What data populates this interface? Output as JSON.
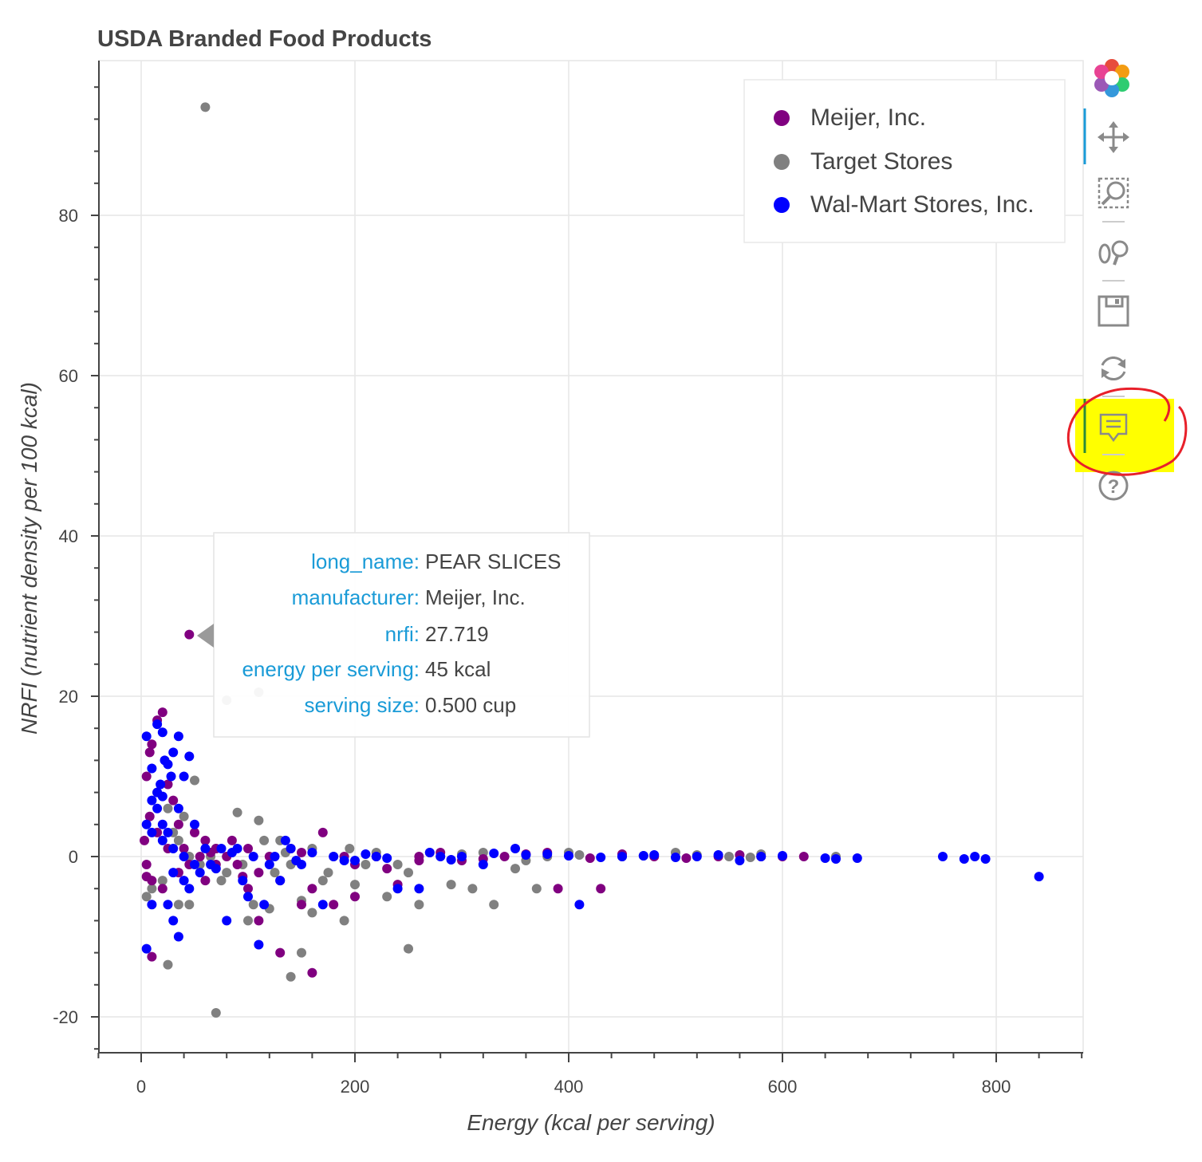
{
  "colors": {
    "meijer": "#800080",
    "target": "#808080",
    "walmart": "#0000ff",
    "tooltip_key": "#1a9bd7",
    "highlight": "#ffff00",
    "annotation": "#e8202a",
    "active_tool": "#1a9bd7"
  },
  "chart_data": {
    "type": "scatter",
    "title": "USDA Branded Food Products",
    "xlabel": "Energy (kcal per serving)",
    "ylabel": "NRFI (nutrient density per 100 kcal)",
    "xlim": [
      -40,
      880
    ],
    "ylim": [
      -24,
      98
    ],
    "x_ticks": [
      0,
      200,
      400,
      600,
      800
    ],
    "x_tick_labels": [
      "0",
      "200",
      "400",
      "600",
      "800"
    ],
    "y_ticks": [
      -20,
      0,
      20,
      40,
      60,
      80
    ],
    "y_tick_labels": [
      "-20",
      "0",
      "20",
      "40",
      "60",
      "80"
    ],
    "grid": true,
    "legend_position": "top-right",
    "series": [
      {
        "name": "Meijer, Inc.",
        "color": "#800080",
        "points": [
          [
            45,
            27.7
          ],
          [
            20,
            18
          ],
          [
            15,
            17
          ],
          [
            8,
            13
          ],
          [
            10,
            14
          ],
          [
            5,
            10
          ],
          [
            25,
            9
          ],
          [
            30,
            7
          ],
          [
            8,
            5
          ],
          [
            15,
            3
          ],
          [
            3,
            2
          ],
          [
            5,
            -1
          ],
          [
            10,
            -3
          ],
          [
            20,
            -4
          ],
          [
            5,
            -2.5
          ],
          [
            35,
            -2
          ],
          [
            40,
            1
          ],
          [
            50,
            3
          ],
          [
            60,
            2
          ],
          [
            70,
            1
          ],
          [
            80,
            0
          ],
          [
            90,
            -1
          ],
          [
            100,
            1
          ],
          [
            110,
            -2
          ],
          [
            120,
            0
          ],
          [
            130,
            -3
          ],
          [
            140,
            1
          ],
          [
            150,
            0.5
          ],
          [
            170,
            3
          ],
          [
            180,
            -6
          ],
          [
            190,
            0
          ],
          [
            200,
            -5
          ],
          [
            220,
            0
          ],
          [
            240,
            -3.5
          ],
          [
            260,
            0
          ],
          [
            280,
            0.5
          ],
          [
            300,
            -0.5
          ],
          [
            340,
            0
          ],
          [
            380,
            0.5
          ],
          [
            390,
            -4
          ],
          [
            430,
            -4
          ],
          [
            480,
            0
          ],
          [
            540,
            0
          ],
          [
            580,
            0
          ],
          [
            600,
            0
          ],
          [
            620,
            0
          ],
          [
            10,
            -12.5
          ],
          [
            130,
            -12
          ],
          [
            160,
            -14.5
          ],
          [
            110,
            -8
          ],
          [
            100,
            -4
          ],
          [
            70,
            -1
          ],
          [
            60,
            -3
          ],
          [
            25,
            1
          ],
          [
            35,
            4
          ],
          [
            55,
            0
          ],
          [
            45,
            -1
          ],
          [
            65,
            0.5
          ],
          [
            85,
            2
          ],
          [
            95,
            -2.5
          ],
          [
            150,
            -6
          ],
          [
            160,
            -4
          ],
          [
            200,
            -1
          ],
          [
            230,
            -1.5
          ],
          [
            260,
            -0.5
          ],
          [
            320,
            -0.3
          ],
          [
            360,
            0.3
          ],
          [
            420,
            -0.2
          ],
          [
            450,
            0.3
          ],
          [
            510,
            -0.2
          ],
          [
            560,
            0.2
          ]
        ]
      },
      {
        "name": "Target Stores",
        "color": "#808080",
        "points": [
          [
            60,
            93.5
          ],
          [
            110,
            20.5
          ],
          [
            80,
            19.5
          ],
          [
            70,
            -19.5
          ],
          [
            25,
            -13.5
          ],
          [
            140,
            -15
          ],
          [
            150,
            -12
          ],
          [
            190,
            -8
          ],
          [
            250,
            -11.5
          ],
          [
            5,
            -5
          ],
          [
            10,
            -4
          ],
          [
            20,
            -3
          ],
          [
            30,
            3
          ],
          [
            40,
            5
          ],
          [
            50,
            9.5
          ],
          [
            35,
            2
          ],
          [
            45,
            0
          ],
          [
            55,
            -1
          ],
          [
            70,
            1
          ],
          [
            80,
            -2
          ],
          [
            90,
            5.5
          ],
          [
            100,
            -8
          ],
          [
            110,
            4.5
          ],
          [
            120,
            -6.5
          ],
          [
            130,
            2
          ],
          [
            140,
            -1
          ],
          [
            150,
            -5.5
          ],
          [
            160,
            1
          ],
          [
            170,
            -3
          ],
          [
            180,
            0
          ],
          [
            200,
            -3.5
          ],
          [
            210,
            -1
          ],
          [
            230,
            -5
          ],
          [
            250,
            -2
          ],
          [
            260,
            -6
          ],
          [
            290,
            -3.5
          ],
          [
            310,
            -4
          ],
          [
            330,
            -6
          ],
          [
            350,
            -1.5
          ],
          [
            370,
            -4
          ],
          [
            400,
            0.5
          ],
          [
            450,
            0
          ],
          [
            500,
            0.5
          ],
          [
            550,
            0
          ],
          [
            580,
            0.3
          ],
          [
            650,
            0
          ],
          [
            15,
            8
          ],
          [
            25,
            6
          ],
          [
            35,
            -6
          ],
          [
            45,
            -6
          ],
          [
            65,
            0
          ],
          [
            75,
            -3
          ],
          [
            95,
            -1
          ],
          [
            105,
            -6
          ],
          [
            115,
            2
          ],
          [
            125,
            -2
          ],
          [
            135,
            0.5
          ],
          [
            160,
            -7
          ],
          [
            175,
            -2
          ],
          [
            195,
            1
          ],
          [
            220,
            0.5
          ],
          [
            240,
            -1
          ],
          [
            270,
            0.5
          ],
          [
            300,
            0.3
          ],
          [
            320,
            0.5
          ],
          [
            360,
            -0.5
          ],
          [
            380,
            0
          ],
          [
            410,
            0.2
          ],
          [
            470,
            0.1
          ],
          [
            520,
            0.2
          ],
          [
            570,
            -0.1
          ]
        ]
      },
      {
        "name": "Wal-Mart Stores, Inc.",
        "color": "#0000ff",
        "points": [
          [
            5,
            15
          ],
          [
            15,
            16.5
          ],
          [
            20,
            15.5
          ],
          [
            35,
            15
          ],
          [
            45,
            12.5
          ],
          [
            10,
            11
          ],
          [
            25,
            11.5
          ],
          [
            30,
            13
          ],
          [
            40,
            10
          ],
          [
            15,
            8
          ],
          [
            20,
            7.5
          ],
          [
            35,
            6
          ],
          [
            5,
            4
          ],
          [
            10,
            3
          ],
          [
            20,
            2
          ],
          [
            30,
            1
          ],
          [
            40,
            0
          ],
          [
            50,
            -1
          ],
          [
            60,
            1
          ],
          [
            70,
            -1.5
          ],
          [
            80,
            -8
          ],
          [
            90,
            1
          ],
          [
            100,
            -5
          ],
          [
            110,
            -11
          ],
          [
            120,
            -1
          ],
          [
            130,
            -3
          ],
          [
            140,
            1
          ],
          [
            150,
            -1
          ],
          [
            170,
            -6
          ],
          [
            180,
            0
          ],
          [
            200,
            -0.5
          ],
          [
            220,
            0
          ],
          [
            240,
            -4
          ],
          [
            260,
            -4
          ],
          [
            280,
            0
          ],
          [
            300,
            0
          ],
          [
            320,
            -1
          ],
          [
            350,
            1
          ],
          [
            380,
            0.3
          ],
          [
            410,
            -6
          ],
          [
            450,
            0
          ],
          [
            480,
            0.2
          ],
          [
            520,
            0
          ],
          [
            560,
            -0.5
          ],
          [
            580,
            0
          ],
          [
            640,
            -0.2
          ],
          [
            650,
            -0.3
          ],
          [
            670,
            -0.2
          ],
          [
            750,
            0
          ],
          [
            770,
            -0.3
          ],
          [
            780,
            0
          ],
          [
            790,
            -0.3
          ],
          [
            840,
            -2.5
          ],
          [
            5,
            -11.5
          ],
          [
            10,
            -6
          ],
          [
            25,
            -6
          ],
          [
            30,
            -8
          ],
          [
            35,
            -10
          ],
          [
            45,
            -4
          ],
          [
            55,
            -2
          ],
          [
            65,
            -1
          ],
          [
            75,
            1
          ],
          [
            85,
            0.5
          ],
          [
            95,
            -3
          ],
          [
            105,
            0
          ],
          [
            115,
            -6
          ],
          [
            125,
            0
          ],
          [
            135,
            2
          ],
          [
            145,
            -0.5
          ],
          [
            160,
            0.5
          ],
          [
            190,
            -0.5
          ],
          [
            210,
            0.3
          ],
          [
            230,
            -0.2
          ],
          [
            270,
            0.5
          ],
          [
            290,
            -0.4
          ],
          [
            330,
            0.4
          ],
          [
            360,
            0.2
          ],
          [
            400,
            0.1
          ],
          [
            430,
            -0.1
          ],
          [
            470,
            0.1
          ],
          [
            500,
            -0.1
          ],
          [
            540,
            0.2
          ],
          [
            600,
            0.1
          ],
          [
            10,
            7
          ],
          [
            20,
            4
          ],
          [
            15,
            6
          ],
          [
            25,
            3
          ],
          [
            30,
            -2
          ],
          [
            40,
            -3
          ],
          [
            50,
            4
          ],
          [
            18,
            9
          ],
          [
            22,
            12
          ],
          [
            28,
            10
          ]
        ]
      }
    ]
  },
  "tooltip": {
    "rows": [
      {
        "key": "long_name:",
        "value": "PEAR SLICES"
      },
      {
        "key": "manufacturer:",
        "value": "Meijer, Inc."
      },
      {
        "key": "nrfi:",
        "value": "27.719"
      },
      {
        "key": "energy per serving:",
        "value": "45 kcal"
      },
      {
        "key": "serving size:",
        "value": "0.500 cup"
      }
    ],
    "anchor": {
      "x": 45,
      "y": 27.7
    }
  },
  "toolbar": {
    "tools": [
      {
        "name": "bokeh-logo-icon",
        "active": false
      },
      {
        "name": "pan-tool-icon",
        "active": true
      },
      {
        "name": "box-zoom-tool-icon",
        "active": false
      },
      {
        "name": "wheel-zoom-tool-icon",
        "active": false
      },
      {
        "name": "save-tool-icon",
        "active": false
      },
      {
        "name": "reset-tool-icon",
        "active": false
      },
      {
        "name": "hover-tool-icon",
        "active": true
      },
      {
        "name": "help-tool-icon",
        "active": false
      }
    ]
  }
}
